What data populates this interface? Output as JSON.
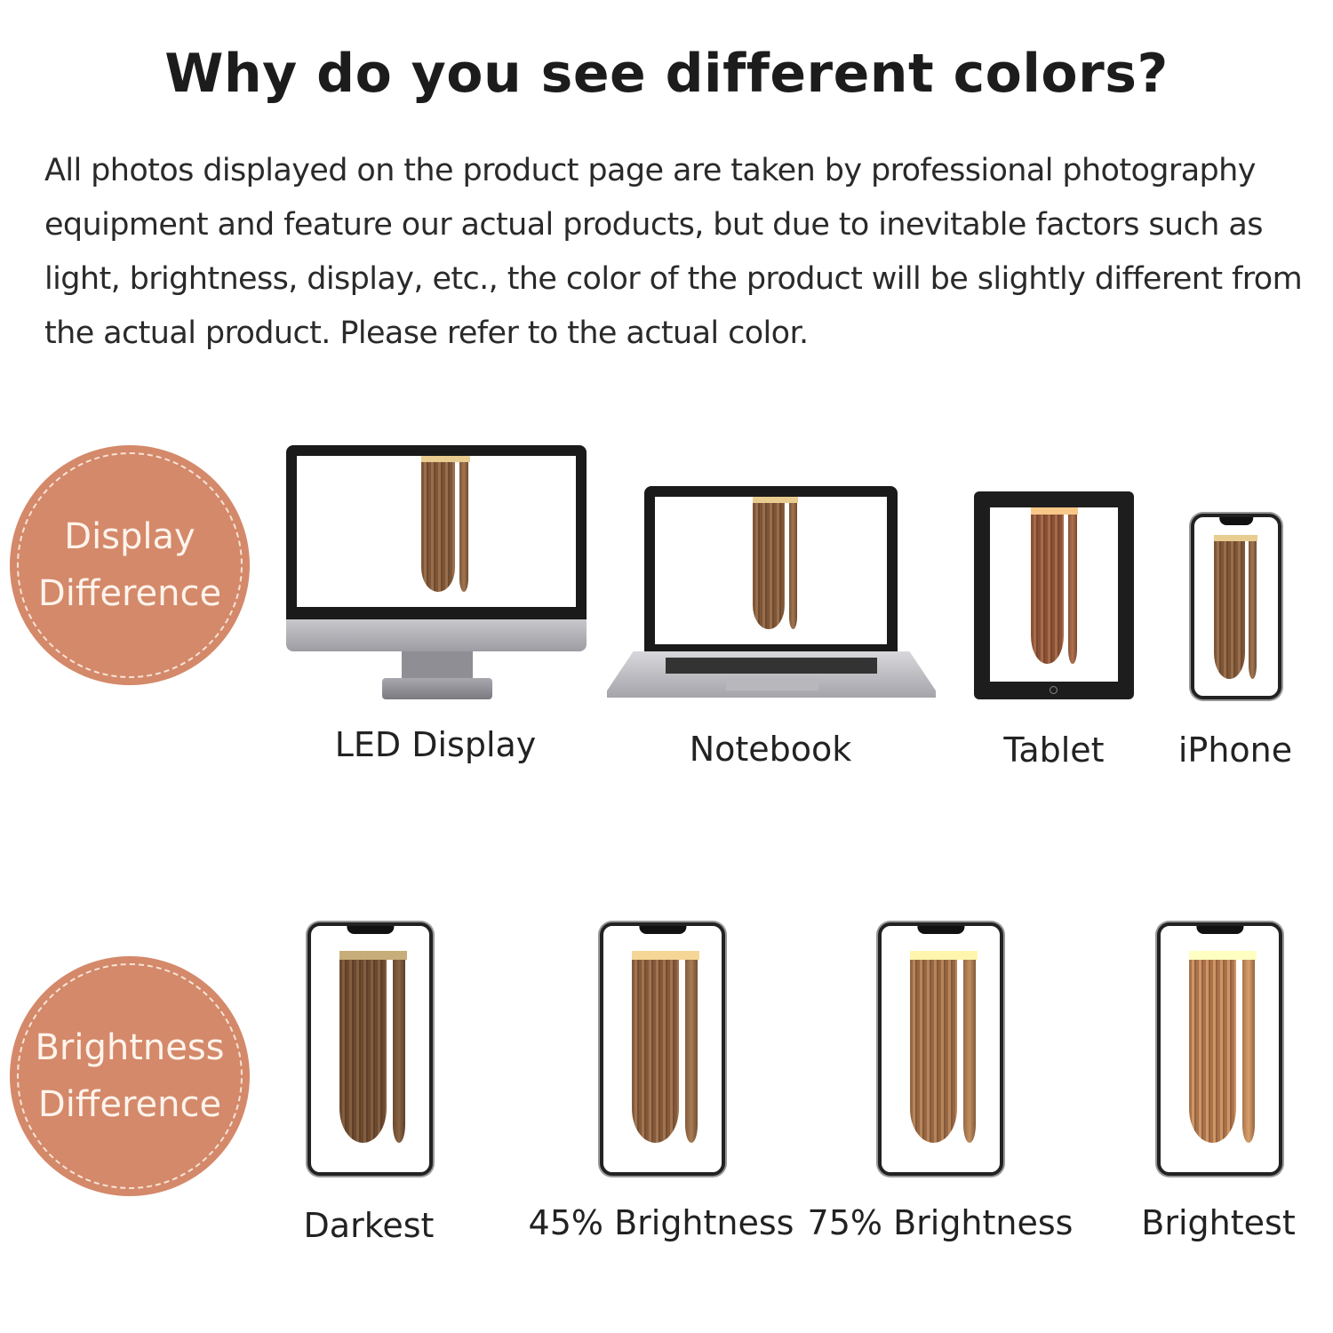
{
  "title": "Why do you see different colors?",
  "paragraph": [
    "All photos displayed on the product page are taken by professional photography",
    "equipment and feature our actual products, but due to inevitable factors such as",
    "light, brightness, display, etc., the color of the product will be slightly different from",
    "the actual product. Please refer to the actual color."
  ],
  "display_section": {
    "badge": [
      "Display",
      "Difference"
    ],
    "badge_color": "#d4896a",
    "devices": [
      "LED Display",
      "Notebook",
      "Tablet",
      "iPhone"
    ]
  },
  "brightness_section": {
    "badge": [
      "Brightness",
      "Difference"
    ],
    "levels": [
      "Darkest",
      "45% Brightness",
      "75% Brightness",
      "Brightest"
    ]
  }
}
